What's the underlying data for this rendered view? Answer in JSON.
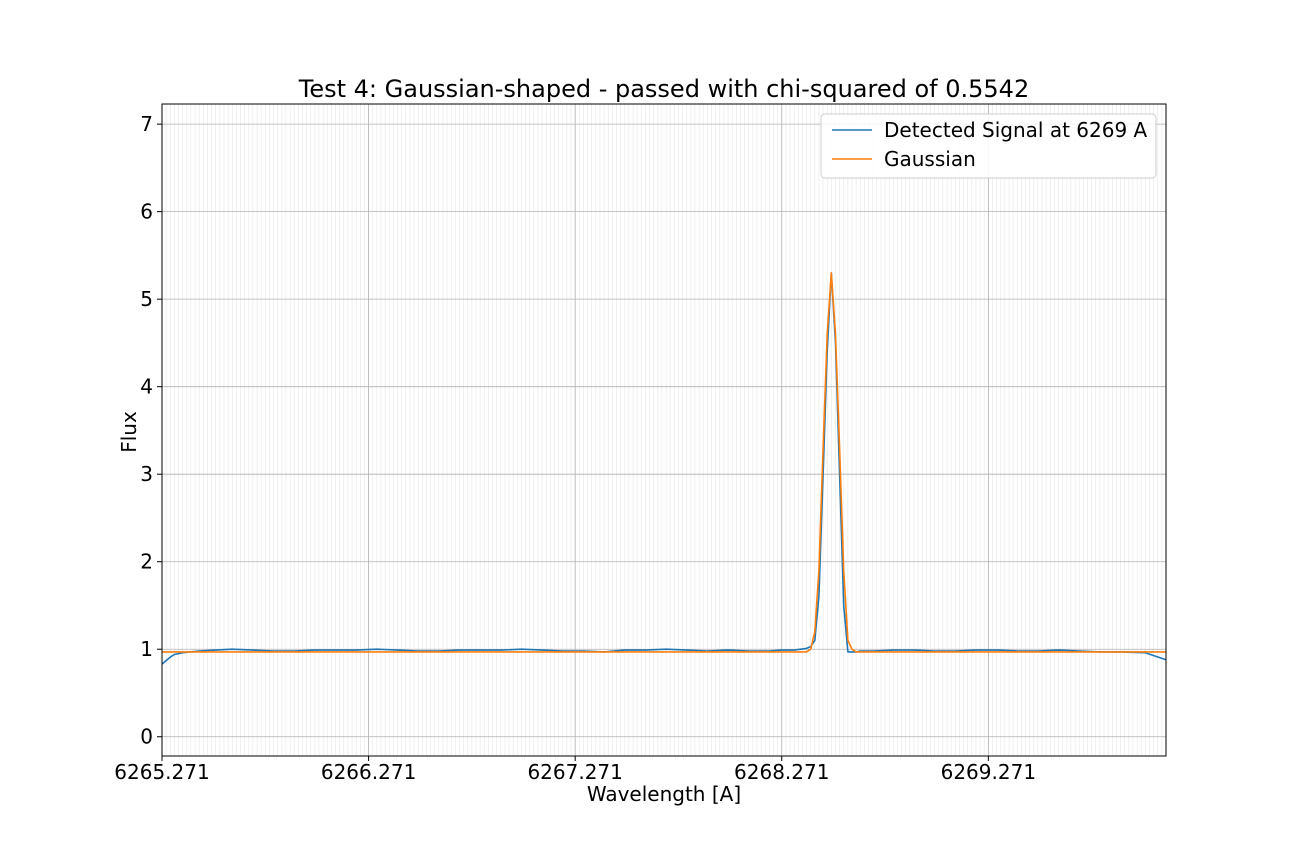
{
  "chart_data": {
    "type": "line",
    "title": "Test 4: Gaussian-shaped - passed with chi-squared of 0.5542",
    "xlabel": "Wavelength [A]",
    "ylabel": "Flux",
    "xlim": [
      6265.271,
      6270.131
    ],
    "ylim": [
      -0.22,
      7.23
    ],
    "x_ticks": [
      6265.271,
      6266.271,
      6267.271,
      6268.271,
      6269.271
    ],
    "x_tick_labels": [
      "6265.271",
      "6266.271",
      "6267.271",
      "6268.271",
      "6269.271"
    ],
    "y_ticks": [
      0,
      1,
      2,
      3,
      4,
      5,
      6,
      7
    ],
    "y_tick_labels": [
      "0",
      "1",
      "2",
      "3",
      "4",
      "5",
      "6",
      "7"
    ],
    "minor_grid_step": 0.02,
    "grid": true,
    "legend_position": "top-right",
    "series": [
      {
        "name": "Detected Signal at 6269 A",
        "color": "#1f77b4",
        "x": [
          6265.271,
          6265.291,
          6265.311,
          6265.331,
          6265.371,
          6265.451,
          6265.531,
          6265.611,
          6265.711,
          6265.811,
          6265.911,
          6266.011,
          6266.111,
          6266.211,
          6266.311,
          6266.411,
          6266.511,
          6266.611,
          6266.711,
          6266.811,
          6266.911,
          6267.011,
          6267.111,
          6267.211,
          6267.311,
          6267.411,
          6267.511,
          6267.611,
          6267.711,
          6267.811,
          6267.911,
          6268.011,
          6268.111,
          6268.211,
          6268.271,
          6268.331,
          6268.391,
          6268.411,
          6268.431,
          6268.451,
          6268.471,
          6268.491,
          6268.511,
          6268.531,
          6268.551,
          6268.571,
          6268.591,
          6268.611,
          6268.631,
          6268.651,
          6268.711,
          6268.811,
          6268.911,
          6269.011,
          6269.111,
          6269.211,
          6269.311,
          6269.411,
          6269.511,
          6269.611,
          6269.711,
          6269.811,
          6269.911,
          6270.031,
          6270.081,
          6270.131
        ],
        "y": [
          0.83,
          0.87,
          0.91,
          0.94,
          0.96,
          0.98,
          0.99,
          1.0,
          0.99,
          0.98,
          0.98,
          0.99,
          0.99,
          0.99,
          1.0,
          0.99,
          0.98,
          0.98,
          0.99,
          0.99,
          0.99,
          1.0,
          0.99,
          0.98,
          0.98,
          0.97,
          0.99,
          0.99,
          1.0,
          0.99,
          0.98,
          0.99,
          0.98,
          0.98,
          0.99,
          0.99,
          1.01,
          1.03,
          1.1,
          1.6,
          3.0,
          4.4,
          5.3,
          4.5,
          3.0,
          1.5,
          0.97,
          0.97,
          0.97,
          0.98,
          0.98,
          0.99,
          0.99,
          0.98,
          0.98,
          0.99,
          0.99,
          0.98,
          0.98,
          0.99,
          0.98,
          0.97,
          0.97,
          0.96,
          0.92,
          0.88
        ]
      },
      {
        "name": "Gaussian",
        "color": "#ff7f0e",
        "x": [
          6265.271,
          6266.271,
          6267.271,
          6268.271,
          6268.391,
          6268.411,
          6268.431,
          6268.451,
          6268.471,
          6268.491,
          6268.511,
          6268.531,
          6268.551,
          6268.571,
          6268.591,
          6268.611,
          6268.631,
          6269.271,
          6270.131
        ],
        "y": [
          0.97,
          0.97,
          0.97,
          0.97,
          0.97,
          1.0,
          1.2,
          1.9,
          3.3,
          4.6,
          5.3,
          4.6,
          3.3,
          1.9,
          1.1,
          1.0,
          0.97,
          0.97,
          0.97
        ]
      }
    ]
  }
}
